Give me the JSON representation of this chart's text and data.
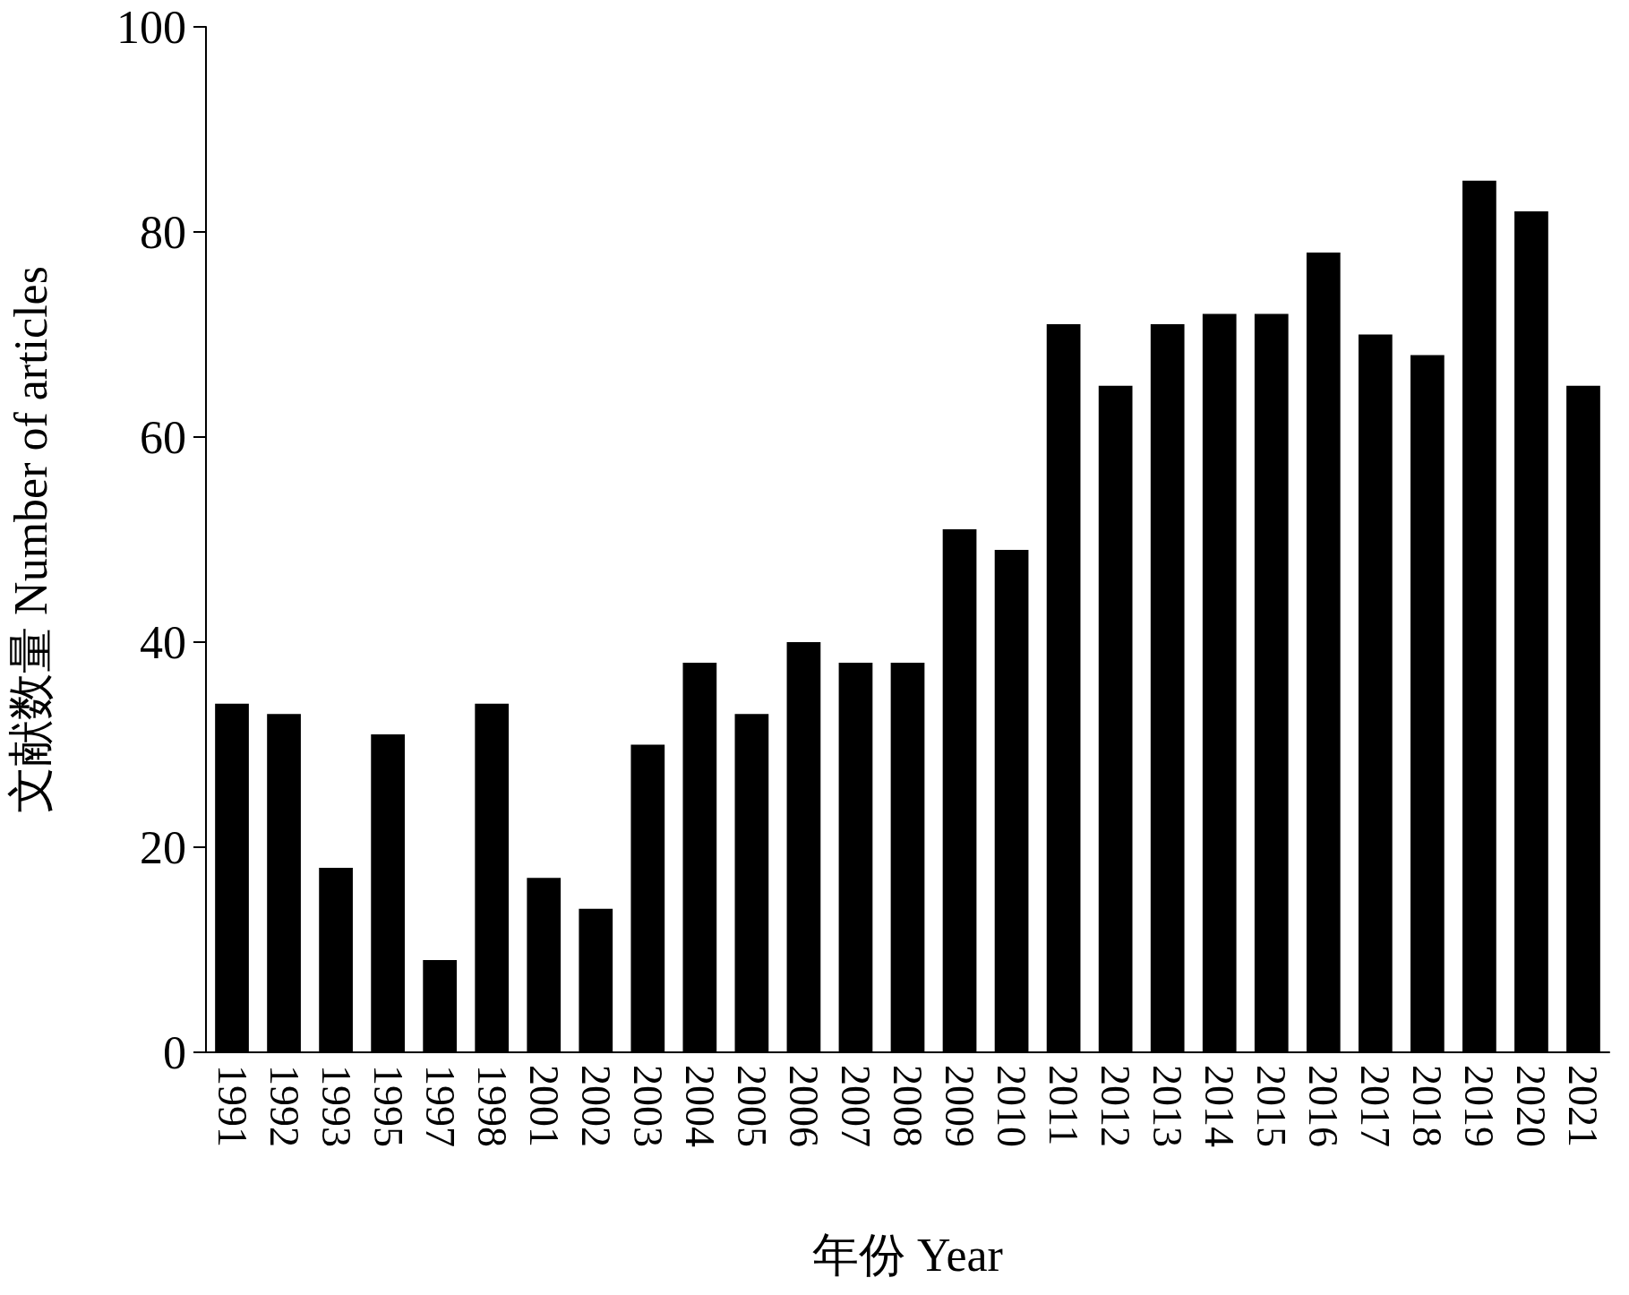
{
  "chart_data": {
    "type": "bar",
    "xlabel": "年份 Year",
    "ylabel": "文献数量 Number of articles",
    "categories": [
      "1991",
      "1992",
      "1993",
      "1995",
      "1997",
      "1998",
      "2001",
      "2002",
      "2003",
      "2004",
      "2005",
      "2006",
      "2007",
      "2008",
      "2009",
      "2010",
      "2011",
      "2012",
      "2013",
      "2014",
      "2015",
      "2016",
      "2017",
      "2018",
      "2019",
      "2020",
      "2021"
    ],
    "values": [
      34,
      33,
      18,
      31,
      9,
      34,
      17,
      14,
      30,
      38,
      33,
      40,
      38,
      38,
      51,
      49,
      71,
      65,
      71,
      72,
      72,
      78,
      70,
      68,
      85,
      82,
      65
    ],
    "color": "#000000",
    "ylim": [
      0,
      100
    ],
    "yticks": [
      0,
      20,
      40,
      60,
      80,
      100
    ],
    "grid": false
  }
}
